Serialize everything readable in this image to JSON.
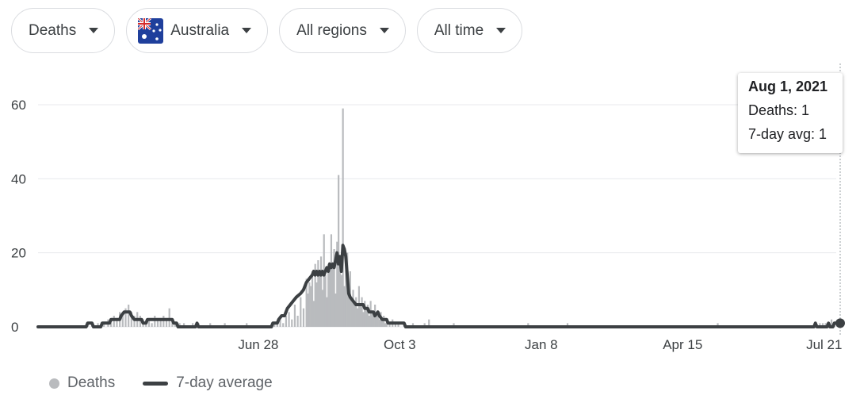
{
  "filters": {
    "metric": "Deaths",
    "country": "Australia",
    "region": "All regions",
    "period": "All time"
  },
  "icons": {
    "caret": "chevron-down-icon",
    "flag": "australia-flag-icon"
  },
  "colors": {
    "bars": "#b9bbbe",
    "average_line": "#3c4043",
    "grid": "#e8eaed"
  },
  "tooltip": {
    "date": "Aug 1, 2021",
    "deaths": "Deaths: 1",
    "avg": "7-day avg: 1"
  },
  "legend": {
    "deaths": "Deaths",
    "average": "7-day average"
  },
  "chart_data": {
    "type": "bar",
    "x_start": "2020-01-29",
    "x_end": "2021-08-01",
    "ylim": [
      0,
      60
    ],
    "y_ticks": [
      0,
      20,
      40,
      60
    ],
    "x_ticks": [
      {
        "label": "Jun 28",
        "date": "2020-06-28"
      },
      {
        "label": "Oct 3",
        "date": "2020-10-03"
      },
      {
        "label": "Jan 8",
        "date": "2021-01-08"
      },
      {
        "label": "Apr 15",
        "date": "2021-04-15"
      },
      {
        "label": "Jul 21",
        "date": "2021-07-21"
      }
    ],
    "grid": true,
    "series": [
      {
        "name": "Deaths",
        "type": "bar",
        "points": [
          [
            "2020-03-03",
            1
          ],
          [
            "2020-03-06",
            1
          ],
          [
            "2020-03-10",
            1
          ],
          [
            "2020-03-14",
            1
          ],
          [
            "2020-03-17",
            2
          ],
          [
            "2020-03-19",
            1
          ],
          [
            "2020-03-21",
            3
          ],
          [
            "2020-03-23",
            2
          ],
          [
            "2020-03-25",
            4
          ],
          [
            "2020-03-27",
            3
          ],
          [
            "2020-03-29",
            5
          ],
          [
            "2020-03-31",
            6
          ],
          [
            "2020-04-02",
            4
          ],
          [
            "2020-04-04",
            3
          ],
          [
            "2020-04-06",
            4
          ],
          [
            "2020-04-08",
            3
          ],
          [
            "2020-04-10",
            2
          ],
          [
            "2020-04-12",
            1
          ],
          [
            "2020-04-14",
            2
          ],
          [
            "2020-04-16",
            1
          ],
          [
            "2020-04-18",
            3
          ],
          [
            "2020-04-20",
            2
          ],
          [
            "2020-04-22",
            2
          ],
          [
            "2020-04-24",
            3
          ],
          [
            "2020-04-26",
            2
          ],
          [
            "2020-04-28",
            5
          ],
          [
            "2020-04-30",
            2
          ],
          [
            "2020-05-02",
            1
          ],
          [
            "2020-05-05",
            1
          ],
          [
            "2020-05-08",
            1
          ],
          [
            "2020-05-14",
            1
          ],
          [
            "2020-05-18",
            1
          ],
          [
            "2020-05-26",
            1
          ],
          [
            "2020-06-05",
            1
          ],
          [
            "2020-06-20",
            1
          ],
          [
            "2020-07-09",
            1
          ],
          [
            "2020-07-11",
            1
          ],
          [
            "2020-07-13",
            2
          ],
          [
            "2020-07-15",
            1
          ],
          [
            "2020-07-17",
            3
          ],
          [
            "2020-07-19",
            4
          ],
          [
            "2020-07-21",
            2
          ],
          [
            "2020-07-23",
            6
          ],
          [
            "2020-07-25",
            3
          ],
          [
            "2020-07-27",
            8
          ],
          [
            "2020-07-29",
            5
          ],
          [
            "2020-07-31",
            13
          ],
          [
            "2020-08-01",
            9
          ],
          [
            "2020-08-02",
            12
          ],
          [
            "2020-08-03",
            11
          ],
          [
            "2020-08-04",
            15
          ],
          [
            "2020-08-05",
            7
          ],
          [
            "2020-08-06",
            17
          ],
          [
            "2020-08-07",
            12
          ],
          [
            "2020-08-08",
            18
          ],
          [
            "2020-08-09",
            15
          ],
          [
            "2020-08-10",
            19
          ],
          [
            "2020-08-11",
            10
          ],
          [
            "2020-08-12",
            25
          ],
          [
            "2020-08-13",
            14
          ],
          [
            "2020-08-14",
            8
          ],
          [
            "2020-08-15",
            17
          ],
          [
            "2020-08-16",
            16
          ],
          [
            "2020-08-17",
            25
          ],
          [
            "2020-08-18",
            16
          ],
          [
            "2020-08-19",
            21
          ],
          [
            "2020-08-20",
            9
          ],
          [
            "2020-08-21",
            23
          ],
          [
            "2020-08-22",
            41
          ],
          [
            "2020-08-23",
            17
          ],
          [
            "2020-08-24",
            14
          ],
          [
            "2020-08-25",
            59
          ],
          [
            "2020-08-26",
            11
          ],
          [
            "2020-08-27",
            19
          ],
          [
            "2020-08-28",
            20
          ],
          [
            "2020-08-29",
            8
          ],
          [
            "2020-08-30",
            15
          ],
          [
            "2020-08-31",
            7
          ],
          [
            "2020-09-01",
            10
          ],
          [
            "2020-09-02",
            6
          ],
          [
            "2020-09-03",
            8
          ],
          [
            "2020-09-04",
            5
          ],
          [
            "2020-09-05",
            11
          ],
          [
            "2020-09-06",
            6
          ],
          [
            "2020-09-07",
            8
          ],
          [
            "2020-09-08",
            4
          ],
          [
            "2020-09-09",
            7
          ],
          [
            "2020-09-10",
            5
          ],
          [
            "2020-09-11",
            6
          ],
          [
            "2020-09-12",
            3
          ],
          [
            "2020-09-13",
            7
          ],
          [
            "2020-09-14",
            4
          ],
          [
            "2020-09-15",
            3
          ],
          [
            "2020-09-16",
            6
          ],
          [
            "2020-09-17",
            4
          ],
          [
            "2020-09-18",
            3
          ],
          [
            "2020-09-19",
            2
          ],
          [
            "2020-09-20",
            4
          ],
          [
            "2020-09-21",
            2
          ],
          [
            "2020-09-22",
            3
          ],
          [
            "2020-09-23",
            1
          ],
          [
            "2020-09-24",
            2
          ],
          [
            "2020-09-26",
            1
          ],
          [
            "2020-09-28",
            2
          ],
          [
            "2020-09-30",
            1
          ],
          [
            "2020-10-02",
            1
          ],
          [
            "2020-10-06",
            1
          ],
          [
            "2020-10-12",
            1
          ],
          [
            "2020-10-20",
            1
          ],
          [
            "2020-10-23",
            2
          ],
          [
            "2020-11-09",
            1
          ],
          [
            "2020-12-30",
            1
          ],
          [
            "2021-01-26",
            1
          ],
          [
            "2021-05-09",
            1
          ],
          [
            "2021-07-18",
            1
          ],
          [
            "2021-07-20",
            1
          ],
          [
            "2021-07-22",
            1
          ],
          [
            "2021-07-24",
            1
          ],
          [
            "2021-07-26",
            2
          ],
          [
            "2021-07-28",
            1
          ],
          [
            "2021-07-30",
            1
          ],
          [
            "2021-08-01",
            1
          ]
        ]
      },
      {
        "name": "7-day average",
        "type": "line",
        "points": [
          [
            "2020-01-29",
            0
          ],
          [
            "2020-03-02",
            0
          ],
          [
            "2020-03-03",
            1
          ],
          [
            "2020-03-06",
            1
          ],
          [
            "2020-03-07",
            0
          ],
          [
            "2020-03-12",
            0
          ],
          [
            "2020-03-13",
            1
          ],
          [
            "2020-03-18",
            1
          ],
          [
            "2020-03-19",
            2
          ],
          [
            "2020-03-25",
            2
          ],
          [
            "2020-03-26",
            3
          ],
          [
            "2020-03-28",
            4
          ],
          [
            "2020-04-01",
            4
          ],
          [
            "2020-04-02",
            3
          ],
          [
            "2020-04-04",
            2
          ],
          [
            "2020-04-09",
            2
          ],
          [
            "2020-04-10",
            1
          ],
          [
            "2020-04-12",
            1
          ],
          [
            "2020-04-13",
            2
          ],
          [
            "2020-04-30",
            2
          ],
          [
            "2020-05-01",
            1
          ],
          [
            "2020-05-03",
            1
          ],
          [
            "2020-05-04",
            0
          ],
          [
            "2020-05-16",
            0
          ],
          [
            "2020-05-17",
            1
          ],
          [
            "2020-05-18",
            0
          ],
          [
            "2020-07-07",
            0
          ],
          [
            "2020-07-08",
            1
          ],
          [
            "2020-07-11",
            1
          ],
          [
            "2020-07-12",
            2
          ],
          [
            "2020-07-14",
            3
          ],
          [
            "2020-07-16",
            3
          ],
          [
            "2020-07-17",
            4
          ],
          [
            "2020-07-18",
            5
          ],
          [
            "2020-07-20",
            6
          ],
          [
            "2020-07-22",
            7
          ],
          [
            "2020-07-24",
            8
          ],
          [
            "2020-07-27",
            9
          ],
          [
            "2020-07-29",
            10
          ],
          [
            "2020-07-31",
            12
          ],
          [
            "2020-08-02",
            13
          ],
          [
            "2020-08-04",
            14
          ],
          [
            "2020-08-05",
            15
          ],
          [
            "2020-08-06",
            14
          ],
          [
            "2020-08-07",
            15
          ],
          [
            "2020-08-08",
            14
          ],
          [
            "2020-08-09",
            15
          ],
          [
            "2020-08-10",
            14
          ],
          [
            "2020-08-11",
            15
          ],
          [
            "2020-08-12",
            14
          ],
          [
            "2020-08-13",
            15
          ],
          [
            "2020-08-14",
            16
          ],
          [
            "2020-08-15",
            15
          ],
          [
            "2020-08-16",
            17
          ],
          [
            "2020-08-17",
            16
          ],
          [
            "2020-08-18",
            17
          ],
          [
            "2020-08-19",
            16
          ],
          [
            "2020-08-20",
            18
          ],
          [
            "2020-08-21",
            20
          ],
          [
            "2020-08-22",
            17
          ],
          [
            "2020-08-23",
            19
          ],
          [
            "2020-08-24",
            15
          ],
          [
            "2020-08-25",
            22
          ],
          [
            "2020-08-26",
            21
          ],
          [
            "2020-08-27",
            19
          ],
          [
            "2020-08-28",
            14
          ],
          [
            "2020-08-29",
            9
          ],
          [
            "2020-08-30",
            8
          ],
          [
            "2020-09-01",
            7
          ],
          [
            "2020-09-03",
            6
          ],
          [
            "2020-09-08",
            6
          ],
          [
            "2020-09-09",
            5
          ],
          [
            "2020-09-11",
            5
          ],
          [
            "2020-09-12",
            4
          ],
          [
            "2020-09-15",
            4
          ],
          [
            "2020-09-16",
            3
          ],
          [
            "2020-09-18",
            4
          ],
          [
            "2020-09-19",
            3
          ],
          [
            "2020-09-21",
            2
          ],
          [
            "2020-09-24",
            2
          ],
          [
            "2020-09-25",
            1
          ],
          [
            "2020-10-06",
            1
          ],
          [
            "2020-10-07",
            0
          ],
          [
            "2021-07-14",
            0
          ],
          [
            "2021-07-15",
            1
          ],
          [
            "2021-07-16",
            0
          ],
          [
            "2021-07-23",
            0
          ],
          [
            "2021-07-24",
            1
          ],
          [
            "2021-07-25",
            0
          ],
          [
            "2021-07-27",
            0
          ],
          [
            "2021-07-28",
            1
          ],
          [
            "2021-08-01",
            1
          ]
        ]
      }
    ]
  }
}
